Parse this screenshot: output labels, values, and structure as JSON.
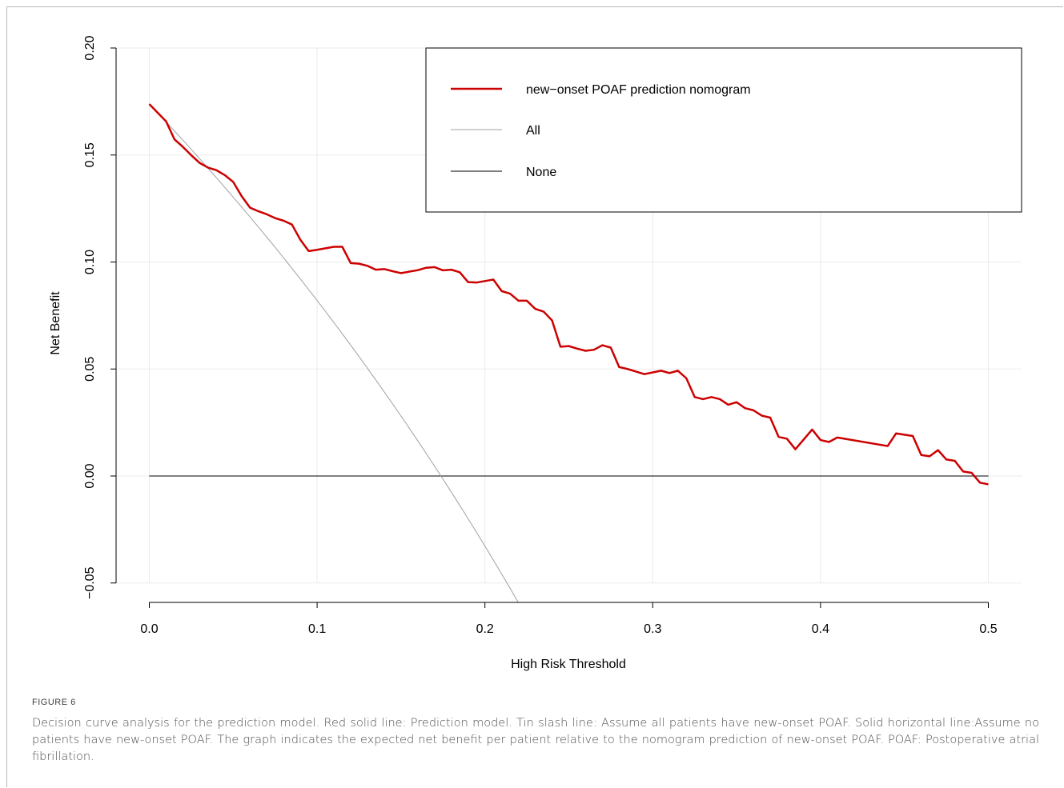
{
  "chart_data": {
    "type": "line",
    "xlabel": "High Risk Threshold",
    "ylabel": "Net Benefit",
    "xlim": [
      0.0,
      0.5
    ],
    "ylim": [
      -0.05,
      0.2
    ],
    "x_ticks": [
      "0.0",
      "0.1",
      "0.2",
      "0.3",
      "0.4",
      "0.5"
    ],
    "y_ticks": [
      "-0.05",
      "0.00",
      "0.05",
      "0.10",
      "0.15",
      "0.20"
    ],
    "grid": true,
    "legend_position": "top-right",
    "colors": {
      "model": "#cc0000",
      "all": "#a0a0a0",
      "none": "#000000",
      "grid": "#ebebeb"
    },
    "series": [
      {
        "name": "new−onset POAF prediction nomogram",
        "color": "#cc0000",
        "x": [
          0.0,
          0.01,
          0.015,
          0.02,
          0.025,
          0.03,
          0.035,
          0.04,
          0.045,
          0.05,
          0.055,
          0.06,
          0.065,
          0.07,
          0.075,
          0.08,
          0.085,
          0.09,
          0.095,
          0.1,
          0.105,
          0.11,
          0.115,
          0.12,
          0.125,
          0.13,
          0.135,
          0.14,
          0.145,
          0.15,
          0.155,
          0.16,
          0.165,
          0.17,
          0.175,
          0.18,
          0.185,
          0.19,
          0.195,
          0.2,
          0.205,
          0.21,
          0.215,
          0.22,
          0.225,
          0.23,
          0.235,
          0.24,
          0.245,
          0.25,
          0.255,
          0.26,
          0.265,
          0.27,
          0.275,
          0.28,
          0.285,
          0.29,
          0.295,
          0.3,
          0.305,
          0.31,
          0.315,
          0.32,
          0.325,
          0.33,
          0.335,
          0.34,
          0.345,
          0.35,
          0.355,
          0.36,
          0.365,
          0.37,
          0.375,
          0.38,
          0.385,
          0.39,
          0.395,
          0.4,
          0.405,
          0.41,
          0.44,
          0.445,
          0.45,
          0.455,
          0.46,
          0.465,
          0.47,
          0.475,
          0.48,
          0.485,
          0.49,
          0.495,
          0.5
        ],
        "y": [
          0.1738,
          0.1657,
          0.1573,
          0.1538,
          0.1499,
          0.1463,
          0.1441,
          0.1429,
          0.1406,
          0.1374,
          0.1308,
          0.1254,
          0.1237,
          0.1223,
          0.1205,
          0.1193,
          0.1175,
          0.1104,
          0.1051,
          0.1057,
          0.1064,
          0.1071,
          0.1071,
          0.0995,
          0.0992,
          0.0982,
          0.0964,
          0.0967,
          0.0957,
          0.0948,
          0.0955,
          0.0962,
          0.0973,
          0.0976,
          0.0961,
          0.0964,
          0.0952,
          0.0906,
          0.0904,
          0.0911,
          0.0918,
          0.0864,
          0.0852,
          0.0819,
          0.0819,
          0.0781,
          0.0768,
          0.0727,
          0.0604,
          0.0607,
          0.0595,
          0.0585,
          0.059,
          0.0611,
          0.06,
          0.0509,
          0.05,
          0.0488,
          0.0476,
          0.0484,
          0.0492,
          0.0481,
          0.0492,
          0.0457,
          0.0369,
          0.0359,
          0.0369,
          0.0359,
          0.0333,
          0.0345,
          0.0317,
          0.0307,
          0.0282,
          0.0273,
          0.0183,
          0.0174,
          0.0125,
          0.0171,
          0.0217,
          0.0168,
          0.0159,
          0.018,
          0.014,
          0.0199,
          0.0193,
          0.0187,
          0.0098,
          0.0092,
          0.0121,
          0.0077,
          0.0071,
          0.0021,
          0.0015,
          -0.0031,
          -0.0039
        ]
      },
      {
        "name": "All",
        "color": "#a0a0a0",
        "prevalence": 0.1738,
        "x": [
          0.0,
          0.02,
          0.04,
          0.06,
          0.08,
          0.1,
          0.12,
          0.14,
          0.16,
          0.18,
          0.2,
          0.22
        ],
        "y": [
          0.1738,
          0.1569,
          0.1394,
          0.1211,
          0.102,
          0.082,
          0.0611,
          0.0393,
          0.0164,
          -0.0077,
          -0.0328,
          -0.0592
        ]
      },
      {
        "name": "None",
        "color": "#000000",
        "x": [
          0.0,
          0.5
        ],
        "y": [
          0.0,
          0.0
        ]
      }
    ]
  },
  "caption": {
    "label": "FIGURE 6",
    "text": "Decision curve analysis for the prediction model. Red solid line: Prediction model. Tin slash line: Assume all patients have new-onset POAF. Solid horizontal line:Assume no patients have new-onset POAF. The graph indicates the expected net benefit per patient relative to the nomogram prediction of new-onset POAF. POAF: Postoperative atrial fibrillation."
  }
}
